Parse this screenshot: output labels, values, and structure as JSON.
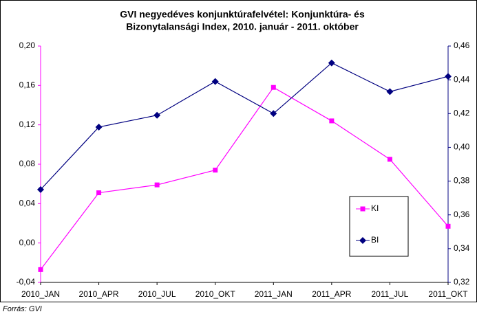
{
  "chart_data": {
    "type": "line",
    "title": [
      "GVI negyedéves konjunktúrafelvétel: Konjunktúra- és",
      "Bizonytalansági Index, 2010. január - 2011. október"
    ],
    "categories": [
      "2010_JAN",
      "2010_APR",
      "2010_JUL",
      "2010_OKT",
      "2011_JAN",
      "2011_APR",
      "2011_JUL",
      "2011_OKT"
    ],
    "series": [
      {
        "name": "KI",
        "color": "#ff00ff",
        "marker": "square",
        "axis": "y",
        "values": [
          -0.027,
          0.051,
          0.059,
          0.074,
          0.158,
          0.124,
          0.085,
          0.017
        ]
      },
      {
        "name": "BI",
        "color": "#000080",
        "marker": "diamond",
        "axis": "y2",
        "values": [
          0.375,
          0.412,
          0.419,
          0.439,
          0.42,
          0.45,
          0.433,
          0.442
        ]
      }
    ],
    "ylim": [
      -0.04,
      0.2
    ],
    "yticks": [
      {
        "value": -0.04,
        "label": "-0,04"
      },
      {
        "value": 0,
        "label": "0,00"
      },
      {
        "value": 0.04,
        "label": "0,04"
      },
      {
        "value": 0.08,
        "label": "0,08"
      },
      {
        "value": 0.12,
        "label": "0,12"
      },
      {
        "value": 0.16,
        "label": "0,16"
      },
      {
        "value": 0.2,
        "label": "0,20"
      }
    ],
    "y2lim": [
      0.32,
      0.46
    ],
    "y2ticks": [
      {
        "value": 0.32,
        "label": "0,32"
      },
      {
        "value": 0.34,
        "label": "0,34"
      },
      {
        "value": 0.36,
        "label": "0,36"
      },
      {
        "value": 0.38,
        "label": "0,38"
      },
      {
        "value": 0.4,
        "label": "0,40"
      },
      {
        "value": 0.42,
        "label": "0,42"
      },
      {
        "value": 0.44,
        "label": "0,44"
      },
      {
        "value": 0.46,
        "label": "0,46"
      }
    ],
    "source": "Forrás: GVI"
  }
}
